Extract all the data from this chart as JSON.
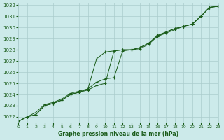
{
  "xlabel": "Graphe pression niveau de la mer (hPa)",
  "bg_color": "#cceaea",
  "grid_color": "#aacccc",
  "line_color": "#1a5c1a",
  "text_color": "#1a5c1a",
  "xlim": [
    0,
    23
  ],
  "ylim": [
    1021.5,
    1032.2
  ],
  "yticks": [
    1022,
    1023,
    1024,
    1025,
    1026,
    1027,
    1028,
    1029,
    1030,
    1031,
    1032
  ],
  "xticks": [
    0,
    1,
    2,
    3,
    4,
    5,
    6,
    7,
    8,
    9,
    10,
    11,
    12,
    13,
    14,
    15,
    16,
    17,
    18,
    19,
    20,
    21,
    22,
    23
  ],
  "series1_x": [
    0,
    1,
    2,
    3,
    4,
    5,
    6,
    7,
    8,
    9,
    10,
    11,
    12,
    13,
    14,
    15,
    16,
    17,
    18,
    19,
    20,
    21,
    22,
    23
  ],
  "series1_y": [
    1021.6,
    1022.0,
    1022.2,
    1023.0,
    1023.2,
    1023.5,
    1024.0,
    1024.2,
    1024.4,
    1024.8,
    1025.0,
    1027.9,
    1028.0,
    1028.0,
    1028.1,
    1028.5,
    1029.2,
    1029.5,
    1029.8,
    1030.1,
    1030.3,
    1031.0,
    1031.8,
    1031.9
  ],
  "series2_x": [
    0,
    1,
    2,
    3,
    4,
    5,
    6,
    7,
    8,
    9,
    10,
    11,
    12,
    13,
    14,
    15,
    16,
    17,
    18,
    19,
    20,
    21,
    22,
    23
  ],
  "series2_y": [
    1021.6,
    1022.0,
    1022.2,
    1023.0,
    1023.2,
    1023.5,
    1024.0,
    1024.2,
    1024.5,
    1025.1,
    1025.4,
    1025.5,
    1027.9,
    1028.0,
    1028.2,
    1028.6,
    1029.2,
    1029.6,
    1029.9,
    1030.1,
    1030.3,
    1031.0,
    1031.8,
    1031.9
  ],
  "series3_x": [
    0,
    1,
    2,
    3,
    4,
    5,
    6,
    7,
    8,
    9,
    10,
    11,
    12,
    13,
    14,
    15,
    16,
    17,
    18,
    19,
    20,
    21,
    22,
    23
  ],
  "series3_y": [
    1021.6,
    1022.0,
    1022.4,
    1023.1,
    1023.3,
    1023.6,
    1024.1,
    1024.3,
    1024.5,
    1027.2,
    1027.8,
    1027.9,
    1028.0,
    1028.0,
    1028.2,
    1028.6,
    1029.3,
    1029.6,
    1029.9,
    1030.1,
    1030.3,
    1031.0,
    1031.8,
    1031.9
  ]
}
